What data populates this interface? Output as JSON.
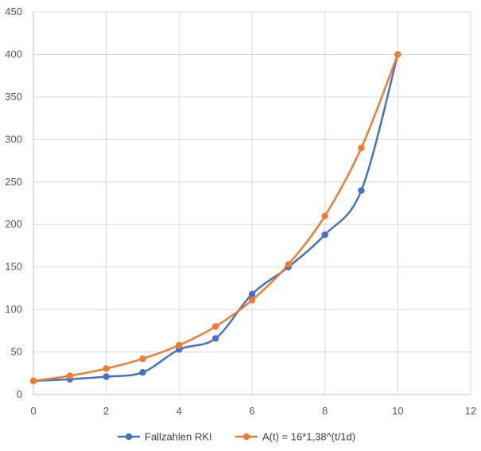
{
  "chart_data": {
    "type": "line",
    "xlim": [
      0,
      12
    ],
    "ylim": [
      0,
      450
    ],
    "x_ticks": [
      0,
      2,
      4,
      6,
      8,
      10,
      12
    ],
    "y_ticks": [
      0,
      50,
      100,
      150,
      200,
      250,
      300,
      350,
      400,
      450
    ],
    "grid": true,
    "legend_position": "bottom",
    "smooth": true,
    "series": [
      {
        "name": "Fallzahlen RKI",
        "color": "#4472C4",
        "x": [
          0,
          1,
          2,
          3,
          4,
          5,
          6,
          7,
          8,
          9,
          10
        ],
        "values": [
          16,
          18,
          21,
          26,
          53,
          66,
          118,
          150,
          188,
          240,
          400
        ]
      },
      {
        "name": "A(t) = 16*1,38^(t/1d)",
        "color": "#ED7D31",
        "x": [
          0,
          1,
          2,
          3,
          4,
          5,
          6,
          7,
          8,
          9,
          10
        ],
        "values": [
          16,
          22,
          30.5,
          42,
          58,
          80,
          111,
          153,
          210,
          290,
          400
        ]
      }
    ]
  }
}
